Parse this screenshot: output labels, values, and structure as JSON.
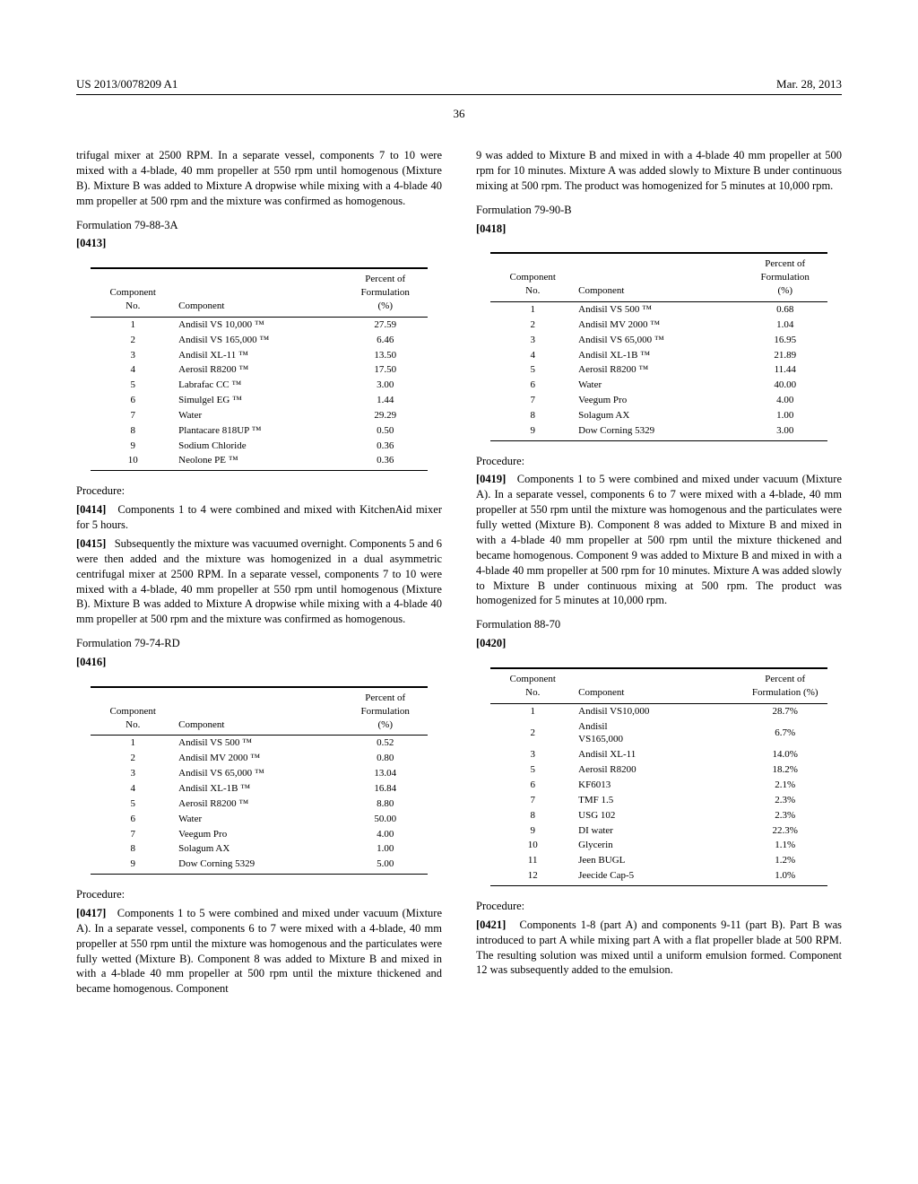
{
  "header": {
    "left": "US 2013/0078209 A1",
    "right": "Mar. 28, 2013"
  },
  "pageNumber": "36",
  "col1": {
    "intro": "trifugal mixer at 2500 RPM. In a separate vessel, components 7 to 10 were mixed with a 4-blade, 40 mm propeller at 550 rpm until homogenous (Mixture B). Mixture B was added to Mixture A dropwise while mixing with a 4-blade 40 mm propeller at 500 rpm and the mixture was confirmed as homogenous.",
    "form1_title": "Formulation 79-88-3A",
    "form1_numline": "[0413]",
    "table_headers": {
      "no": "Component\nNo.",
      "comp": "Component",
      "pct": "Percent of\nFormulation\n(%)"
    },
    "form1_rows": [
      {
        "n": "1",
        "c": "Andisil VS 10,000 ™",
        "p": "27.59"
      },
      {
        "n": "2",
        "c": "Andisil VS 165,000 ™",
        "p": "6.46"
      },
      {
        "n": "3",
        "c": "Andisil XL-11 ™",
        "p": "13.50"
      },
      {
        "n": "4",
        "c": "Aerosil R8200 ™",
        "p": "17.50"
      },
      {
        "n": "5",
        "c": "Labrafac CC ™",
        "p": "3.00"
      },
      {
        "n": "6",
        "c": "Simulgel EG ™",
        "p": "1.44"
      },
      {
        "n": "7",
        "c": "Water",
        "p": "29.29"
      },
      {
        "n": "8",
        "c": "Plantacare 818UP ™",
        "p": "0.50"
      },
      {
        "n": "9",
        "c": "Sodium Chloride",
        "p": "0.36"
      },
      {
        "n": "10",
        "c": "Neolone PE ™",
        "p": "0.36"
      }
    ],
    "proc1_label": "Procedure:",
    "proc1a_num": "[0414]",
    "proc1a_text": "Components 1 to 4 were combined and mixed with KitchenAid mixer for 5 hours.",
    "proc1b_num": "[0415]",
    "proc1b_text": "Subsequently the mixture was vacuumed overnight. Components 5 and 6 were then added and the mixture was homogenized in a dual asymmetric centrifugal mixer at 2500 RPM. In a separate vessel, components 7 to 10 were mixed with a 4-blade, 40 mm propeller at 550 rpm until homogenous (Mixture B). Mixture B was added to Mixture A dropwise while mixing with a 4-blade 40 mm propeller at 500 rpm and the mixture was confirmed as homogenous.",
    "form2_title": "Formulation 79-74-RD",
    "form2_numline": "[0416]",
    "form2_rows": [
      {
        "n": "1",
        "c": "Andisil VS 500 ™",
        "p": "0.52"
      },
      {
        "n": "2",
        "c": "Andisil MV 2000 ™",
        "p": "0.80"
      },
      {
        "n": "3",
        "c": "Andisil VS 65,000 ™",
        "p": "13.04"
      },
      {
        "n": "4",
        "c": "Andisil XL-1B ™",
        "p": "16.84"
      },
      {
        "n": "5",
        "c": "Aerosil R8200 ™",
        "p": "8.80"
      },
      {
        "n": "6",
        "c": "Water",
        "p": "50.00"
      },
      {
        "n": "7",
        "c": "Veegum Pro",
        "p": "4.00"
      },
      {
        "n": "8",
        "c": "Solagum AX",
        "p": "1.00"
      },
      {
        "n": "9",
        "c": "Dow Corning 5329",
        "p": "5.00"
      }
    ],
    "proc2_label": "Procedure:",
    "proc2_num": "[0417]",
    "proc2_text": "Components 1 to 5 were combined and mixed under vacuum (Mixture A). In a separate vessel, components 6 to 7 were mixed with a 4-blade, 40 mm propeller at 550 rpm until the mixture was homogenous and the particulates were fully wetted (Mixture B). Component 8 was added to Mixture B and mixed in with a 4-blade 40 mm propeller at 500 rpm until the mixture thickened and became homogenous. Component"
  },
  "col2": {
    "intro": "9 was added to Mixture B and mixed in with a 4-blade 40 mm propeller at 500 rpm for 10 minutes. Mixture A was added slowly to Mixture B under continuous mixing at 500 rpm. The product was homogenized for 5 minutes at 10,000 rpm.",
    "form3_title": "Formulation 79-90-B",
    "form3_numline": "[0418]",
    "form3_rows": [
      {
        "n": "1",
        "c": "Andisil VS 500 ™",
        "p": "0.68"
      },
      {
        "n": "2",
        "c": "Andisil MV 2000 ™",
        "p": "1.04"
      },
      {
        "n": "3",
        "c": "Andisil VS 65,000 ™",
        "p": "16.95"
      },
      {
        "n": "4",
        "c": "Andisil XL-1B ™",
        "p": "21.89"
      },
      {
        "n": "5",
        "c": "Aerosil R8200 ™",
        "p": "11.44"
      },
      {
        "n": "6",
        "c": "Water",
        "p": "40.00"
      },
      {
        "n": "7",
        "c": "Veegum Pro",
        "p": "4.00"
      },
      {
        "n": "8",
        "c": "Solagum AX",
        "p": "1.00"
      },
      {
        "n": "9",
        "c": "Dow Corning 5329",
        "p": "3.00"
      }
    ],
    "proc3_label": "Procedure:",
    "proc3_num": "[0419]",
    "proc3_text": "Components 1 to 5 were combined and mixed under vacuum (Mixture A). In a separate vessel, components 6 to 7 were mixed with a 4-blade, 40 mm propeller at 550 rpm until the mixture was homogenous and the particulates were fully wetted (Mixture B). Component 8 was added to Mixture B and mixed in with a 4-blade 40 mm propeller at 500 rpm until the mixture thickened and became homogenous. Component 9 was added to Mixture B and mixed in with a 4-blade 40 mm propeller at 500 rpm for 10 minutes. Mixture A was added slowly to Mixture B under continuous mixing at 500 rpm. The product was homogenized for 5 minutes at 10,000 rpm.",
    "form4_title": "Formulation 88-70",
    "form4_numline": "[0420]",
    "table4_headers": {
      "no": "Component\nNo.",
      "comp": "Component",
      "pct": "Percent of\nFormulation (%)"
    },
    "form4_rows": [
      {
        "n": "1",
        "c": "Andisil VS10,000",
        "p": "28.7%"
      },
      {
        "n": "2",
        "c": "Andisil\nVS165,000",
        "p": "6.7%"
      },
      {
        "n": "3",
        "c": "Andisil XL-11",
        "p": "14.0%"
      },
      {
        "n": "5",
        "c": "Aerosil R8200",
        "p": "18.2%"
      },
      {
        "n": "6",
        "c": "KF6013",
        "p": "2.1%"
      },
      {
        "n": "7",
        "c": "TMF 1.5",
        "p": "2.3%"
      },
      {
        "n": "8",
        "c": "USG 102",
        "p": "2.3%"
      },
      {
        "n": "9",
        "c": "DI water",
        "p": "22.3%"
      },
      {
        "n": "10",
        "c": "Glycerin",
        "p": "1.1%"
      },
      {
        "n": "11",
        "c": "Jeen BUGL",
        "p": "1.2%"
      },
      {
        "n": "12",
        "c": "Jeecide Cap-5",
        "p": "1.0%"
      }
    ],
    "proc4_label": "Procedure:",
    "proc4_num": "[0421]",
    "proc4_text": "Components 1-8 (part A) and components 9-11 (part B). Part B was introduced to part A while mixing part A with a flat propeller blade at 500 RPM. The resulting solution was mixed until a uniform emulsion formed. Component 12 was subsequently added to the emulsion."
  }
}
